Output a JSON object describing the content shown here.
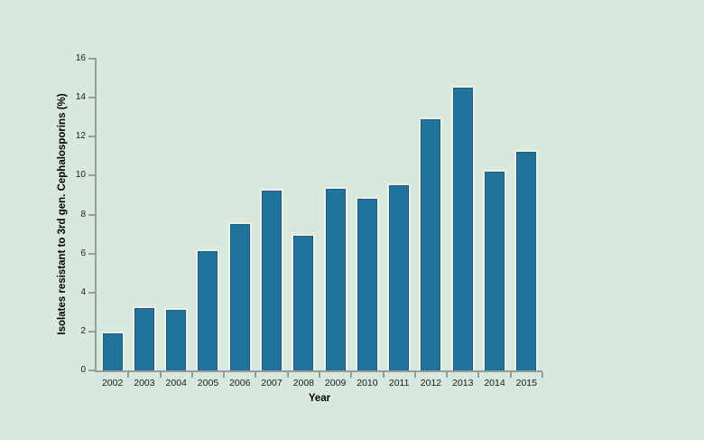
{
  "background_color": "#d7e8dd",
  "chart_data": {
    "type": "bar",
    "title": "",
    "xlabel": "Year",
    "ylabel": "Isolates resistant to 3rd gen. Cephalosporins (%)",
    "categories": [
      "2002",
      "2003",
      "2004",
      "2005",
      "2006",
      "2007",
      "2008",
      "2009",
      "2010",
      "2011",
      "2012",
      "2013",
      "2014",
      "2015"
    ],
    "values": [
      2.0,
      3.3,
      3.2,
      6.2,
      7.6,
      9.3,
      7.0,
      9.4,
      8.9,
      9.6,
      13.0,
      14.6,
      10.3,
      11.3
    ],
    "ylim": [
      0,
      16
    ],
    "yticks": [
      0,
      2,
      4,
      6,
      8,
      10,
      12,
      14,
      16
    ],
    "grid": false,
    "legend": false,
    "bar_color": "#20749c",
    "bar_edge_color": "#175f85",
    "bar_halo_color": "#f1efe2",
    "axis_color": "#97999b",
    "text_color": "#1a1a1a"
  }
}
